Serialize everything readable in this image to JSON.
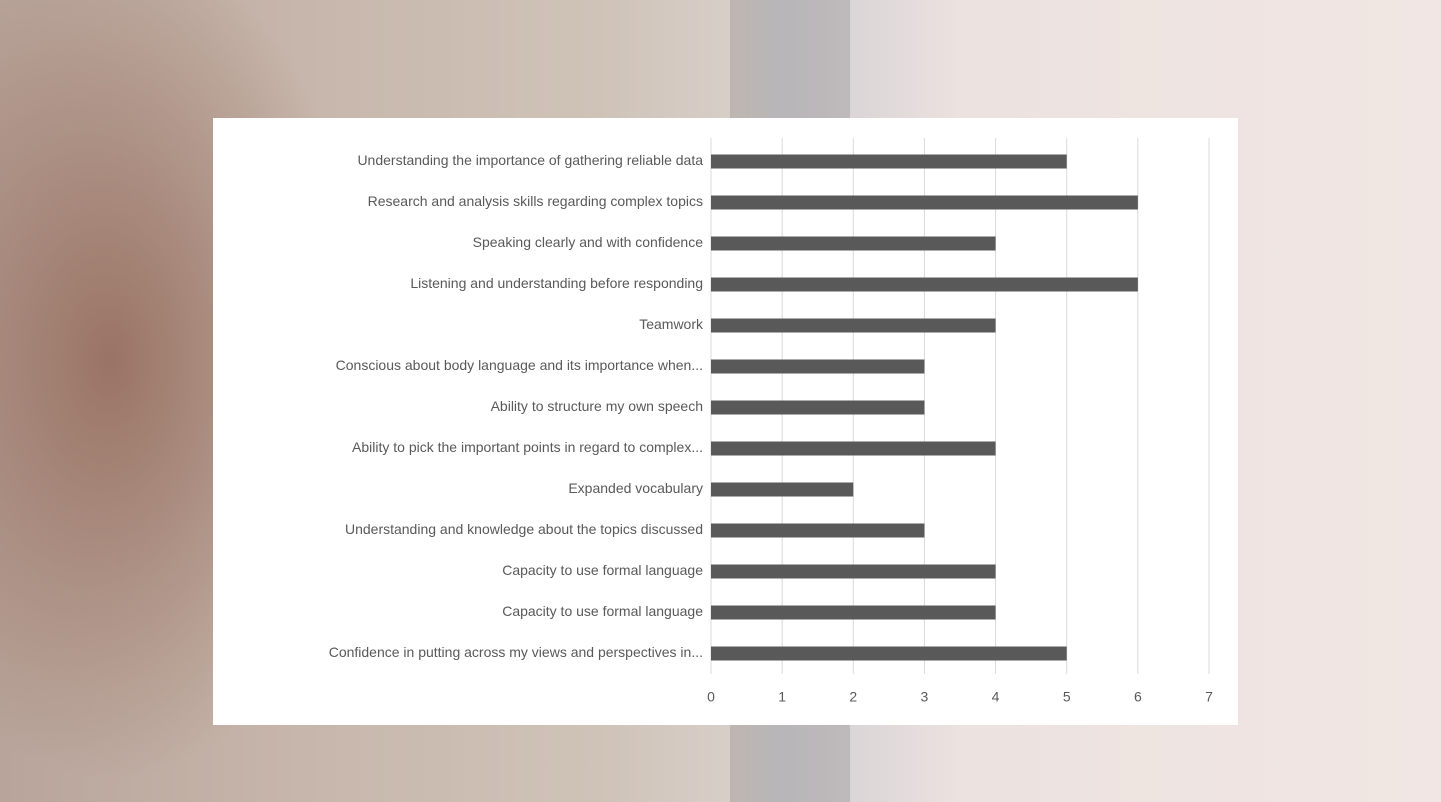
{
  "chart_data": {
    "type": "bar",
    "orientation": "horizontal",
    "categories": [
      "Understanding the importance of gathering reliable data",
      "Research and analysis skills regarding complex topics",
      "Speaking clearly and with confidence",
      "Listening and understanding before responding",
      "Teamwork",
      "Conscious about body language and its importance when...",
      "Ability to structure my own speech",
      "Ability to pick the important points in regard to complex...",
      "Expanded vocabulary",
      "Understanding and knowledge about the topics discussed",
      "Capacity to use formal language",
      "Capacity to use formal language",
      "Confidence in putting across my views and perspectives in..."
    ],
    "values": [
      5,
      6,
      4,
      6,
      4,
      3,
      3,
      4,
      2,
      3,
      4,
      4,
      5
    ],
    "color": "#595959",
    "xlim": [
      0,
      7
    ],
    "xticks": [
      0,
      1,
      2,
      3,
      4,
      5,
      6,
      7
    ],
    "grid": true
  }
}
